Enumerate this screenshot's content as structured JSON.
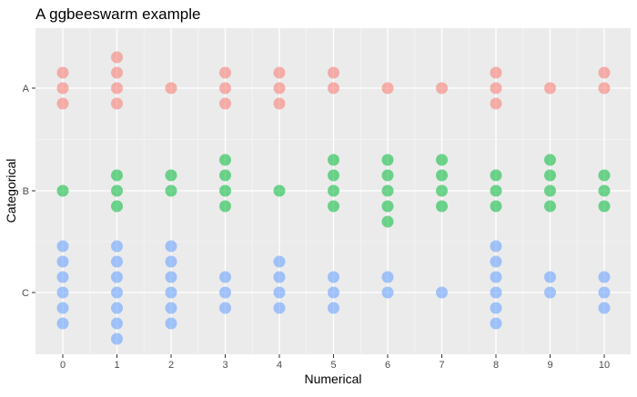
{
  "chart_data": {
    "type": "scatter",
    "subtype": "beeswarm",
    "title": "A ggbeeswarm example",
    "xlabel": "Numerical",
    "ylabel": "Categorical",
    "x_ticks": [
      0,
      1,
      2,
      3,
      4,
      5,
      6,
      7,
      8,
      9,
      10
    ],
    "categories": [
      "A",
      "B",
      "C"
    ],
    "grid": true,
    "legend": "none",
    "colors": {
      "A": "#f8766d",
      "B": "#00ba38",
      "C": "#619cff"
    },
    "series": [
      {
        "values": [
          {
            "x": 0,
            "count": 3
          },
          {
            "x": 1,
            "count": 4
          },
          {
            "x": 2,
            "count": 1
          },
          {
            "x": 3,
            "count": 3
          },
          {
            "x": 4,
            "count": 3
          },
          {
            "x": 5,
            "count": 2
          },
          {
            "x": 6,
            "count": 1
          },
          {
            "x": 7,
            "count": 1
          },
          {
            "x": 8,
            "count": 3
          },
          {
            "x": 9,
            "count": 1
          },
          {
            "x": 10,
            "count": 2
          }
        ]
      },
      {
        "values": [
          {
            "x": 0,
            "count": 1
          },
          {
            "x": 1,
            "count": 3
          },
          {
            "x": 2,
            "count": 2
          },
          {
            "x": 3,
            "count": 4
          },
          {
            "x": 4,
            "count": 1
          },
          {
            "x": 5,
            "count": 4
          },
          {
            "x": 6,
            "count": 5
          },
          {
            "x": 7,
            "count": 4
          },
          {
            "x": 8,
            "count": 3
          },
          {
            "x": 9,
            "count": 4
          },
          {
            "x": 10,
            "count": 3
          }
        ]
      },
      {
        "values": [
          {
            "x": 0,
            "count": 6
          },
          {
            "x": 1,
            "count": 7
          },
          {
            "x": 2,
            "count": 6
          },
          {
            "x": 3,
            "count": 3
          },
          {
            "x": 4,
            "count": 4
          },
          {
            "x": 5,
            "count": 3
          },
          {
            "x": 6,
            "count": 2
          },
          {
            "x": 7,
            "count": 1
          },
          {
            "x": 8,
            "count": 6
          },
          {
            "x": 9,
            "count": 2
          },
          {
            "x": 10,
            "count": 3
          }
        ]
      }
    ]
  }
}
